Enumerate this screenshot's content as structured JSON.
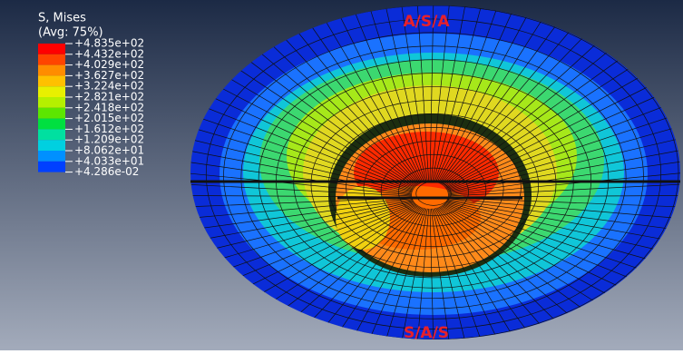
{
  "legend": {
    "title": "S, Mises",
    "subtitle": "(Avg: 75%)",
    "labels": [
      "+4.835e+02",
      "+4.432e+02",
      "+4.029e+02",
      "+3.627e+02",
      "+3.224e+02",
      "+2.821e+02",
      "+2.418e+02",
      "+2.015e+02",
      "+1.612e+02",
      "+1.209e+02",
      "+8.062e+01",
      "+4.033e+01",
      "+4.286e-02"
    ],
    "colors": [
      "#ff0000",
      "#ff4400",
      "#ff8c00",
      "#ffc000",
      "#e8f000",
      "#b4f000",
      "#5ce600",
      "#00e040",
      "#00e0a0",
      "#00d0e0",
      "#0090ff",
      "#0040ff"
    ]
  },
  "model": {
    "top_label": "A/S/A",
    "bottom_label": "S/A/S"
  }
}
